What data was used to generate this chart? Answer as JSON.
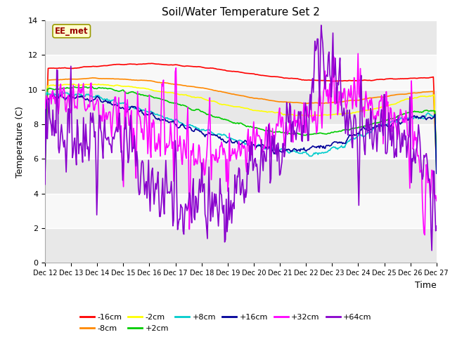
{
  "title": "Soil/Water Temperature Set 2",
  "xlabel": "Time",
  "ylabel": "Temperature (C)",
  "ylim": [
    0,
    14
  ],
  "yticks": [
    0,
    2,
    4,
    6,
    8,
    10,
    12,
    14
  ],
  "x_labels": [
    "Dec 12",
    "Dec 13",
    "Dec 14",
    "Dec 15",
    "Dec 16",
    "Dec 17",
    "Dec 18",
    "Dec 19",
    "Dec 20",
    "Dec 21",
    "Dec 22",
    "Dec 23",
    "Dec 24",
    "Dec 25",
    "Dec 26",
    "Dec 27"
  ],
  "annotation_text": "EE_met",
  "annotation_color": "#990000",
  "annotation_bg": "#ffffcc",
  "series_colors": {
    "-16cm": "#ff0000",
    "-8cm": "#ff8800",
    "-2cm": "#ffff00",
    "+2cm": "#00cc00",
    "+8cm": "#00cccc",
    "+16cm": "#000099",
    "+32cm": "#ff00ff",
    "+64cm": "#8800cc"
  },
  "n_points": 500,
  "bg_light": "#f0f0f0",
  "bg_dark": "#dcdcdc"
}
